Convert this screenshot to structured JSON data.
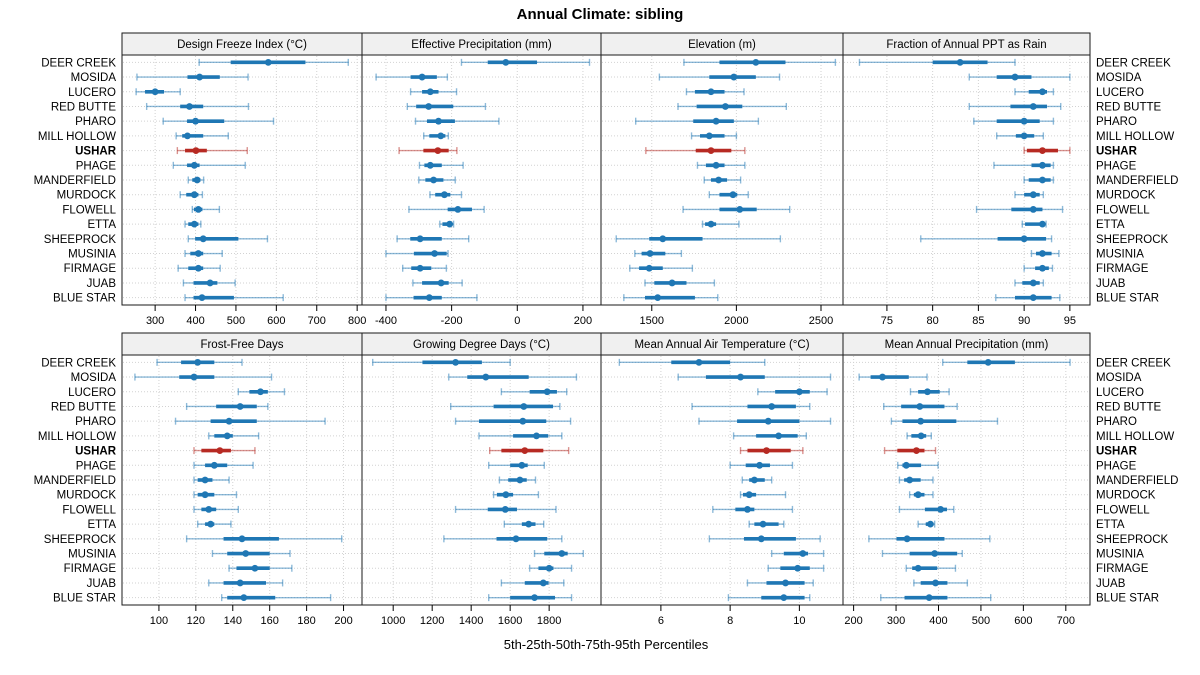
{
  "title": "Annual Climate: sibling",
  "caption": "5th-25th-50th-75th-95th Percentiles",
  "highlight_site": "USHAR",
  "colors": {
    "series": "#1f77b4",
    "highlight": "#b72a23",
    "strip_bg": "#f0f0f0",
    "grid": "#d2d2d2",
    "panel_border": "#1a1a1a",
    "text": "#000000"
  },
  "sites": [
    "DEER CREEK",
    "MOSIDA",
    "LUCERO",
    "RED BUTTE",
    "PHARO",
    "MILL HOLLOW",
    "USHAR",
    "PHAGE",
    "MANDERFIELD",
    "MURDOCK",
    "FLOWELL",
    "ETTA",
    "SHEEPROCK",
    "MUSINIA",
    "FIRMAGE",
    "JUAB",
    "BLUE STAR"
  ],
  "chart_data": {
    "type": "dotplot-percentiles",
    "percentiles": [
      5,
      25,
      50,
      75,
      95
    ],
    "legend_position": "none",
    "grid": "dotted",
    "panels": [
      {
        "key": "design-freeze-index",
        "title": "Design Freeze Index (°C)",
        "xlim": [
          218,
          812
        ],
        "ticks": [
          300,
          400,
          500,
          600,
          700,
          800
        ],
        "values": [
          [
            409,
            487,
            580,
            672,
            778
          ],
          [
            255,
            380,
            410,
            460,
            530
          ],
          [
            253,
            275,
            300,
            322,
            362
          ],
          [
            279,
            362,
            385,
            419,
            531
          ],
          [
            320,
            379,
            400,
            471,
            593
          ],
          [
            352,
            367,
            380,
            419,
            481
          ],
          [
            355,
            374,
            401,
            428,
            528
          ],
          [
            345,
            379,
            397,
            410,
            523
          ],
          [
            382,
            392,
            404,
            412,
            420
          ],
          [
            362,
            377,
            397,
            407,
            417
          ],
          [
            392,
            396,
            407,
            417,
            459
          ],
          [
            374,
            382,
            397,
            407,
            413
          ],
          [
            382,
            399,
            419,
            506,
            578
          ],
          [
            374,
            387,
            407,
            419,
            466
          ],
          [
            357,
            382,
            407,
            419,
            461
          ],
          [
            370,
            395,
            436,
            454,
            498
          ],
          [
            374,
            395,
            416,
            495,
            617
          ]
        ]
      },
      {
        "key": "effective-precipitation",
        "title": "Effective Precipitation (mm)",
        "xlim": [
          -473,
          255
        ],
        "ticks": [
          -400,
          -200,
          0,
          200
        ],
        "values": [
          [
            -170,
            -90,
            -35,
            60,
            220
          ],
          [
            -430,
            -325,
            -290,
            -245,
            -213
          ],
          [
            -325,
            -290,
            -265,
            -240,
            -185
          ],
          [
            -335,
            -308,
            -270,
            -195,
            -97
          ],
          [
            -310,
            -275,
            -240,
            -190,
            -56
          ],
          [
            -285,
            -268,
            -233,
            -219,
            -210
          ],
          [
            -360,
            -286,
            -242,
            -209,
            -184
          ],
          [
            -298,
            -283,
            -265,
            -230,
            -165
          ],
          [
            -300,
            -280,
            -255,
            -225,
            -189
          ],
          [
            -266,
            -250,
            -222,
            -204,
            -170
          ],
          [
            -330,
            -212,
            -181,
            -138,
            -101
          ],
          [
            -236,
            -228,
            -206,
            -199,
            -194
          ],
          [
            -366,
            -326,
            -296,
            -230,
            -148
          ],
          [
            -400,
            -315,
            -252,
            -215,
            -211
          ],
          [
            -349,
            -323,
            -296,
            -262,
            -216
          ],
          [
            -318,
            -290,
            -232,
            -209,
            -168
          ],
          [
            -400,
            -316,
            -268,
            -230,
            -123
          ]
        ]
      },
      {
        "key": "elevation",
        "title": "Elevation (m)",
        "xlim": [
          1200,
          2630
        ],
        "ticks": [
          1500,
          2000,
          2500
        ],
        "values": [
          [
            1690,
            1900,
            2115,
            2290,
            2585
          ],
          [
            1545,
            1840,
            1985,
            2115,
            2255
          ],
          [
            1705,
            1755,
            1850,
            1930,
            2045
          ],
          [
            1655,
            1765,
            1935,
            2035,
            2295
          ],
          [
            1405,
            1745,
            1880,
            1985,
            2130
          ],
          [
            1735,
            1785,
            1840,
            1930,
            2000
          ],
          [
            1465,
            1760,
            1850,
            1970,
            2050
          ],
          [
            1770,
            1820,
            1880,
            1930,
            2050
          ],
          [
            1810,
            1850,
            1895,
            1945,
            2025
          ],
          [
            1840,
            1900,
            1980,
            2005,
            2070
          ],
          [
            1685,
            1900,
            2020,
            2120,
            2315
          ],
          [
            1800,
            1815,
            1850,
            1880,
            2015
          ],
          [
            1290,
            1485,
            1565,
            1800,
            2260
          ],
          [
            1400,
            1440,
            1490,
            1580,
            1675
          ],
          [
            1370,
            1425,
            1485,
            1565,
            1740
          ],
          [
            1460,
            1515,
            1620,
            1705,
            1870
          ],
          [
            1335,
            1460,
            1535,
            1755,
            1890
          ]
        ]
      },
      {
        "key": "fraction-annual-ppt-as-rain",
        "title": "Fraction of Annual PPT as Rain",
        "xlim": [
          70.2,
          97.2
        ],
        "ticks": [
          75,
          80,
          85,
          90,
          95
        ],
        "values": [
          [
            72,
            80,
            83,
            86,
            89
          ],
          [
            84,
            87,
            89,
            90.8,
            95
          ],
          [
            89,
            90.5,
            92,
            92.5,
            93.2
          ],
          [
            84,
            88.5,
            91,
            92.5,
            94
          ],
          [
            84.5,
            87,
            90,
            91.7,
            93.2
          ],
          [
            87,
            89.1,
            90,
            91.1,
            92.1
          ],
          [
            90,
            90.3,
            92,
            93.7,
            95
          ],
          [
            86.7,
            90.8,
            92,
            92.9,
            93.2
          ],
          [
            90,
            90.5,
            92,
            92.9,
            93.2
          ],
          [
            89,
            90,
            91,
            91.7,
            92.1
          ],
          [
            84.8,
            88.6,
            91,
            92,
            94.2
          ],
          [
            89.8,
            90.1,
            92,
            92.2,
            92.4
          ],
          [
            78.7,
            87.1,
            90,
            92.4,
            93
          ],
          [
            90.8,
            91.3,
            92,
            93,
            93.8
          ],
          [
            90,
            91.2,
            92,
            92.7,
            93.1
          ],
          [
            89,
            89.8,
            91,
            91.7,
            92.1
          ],
          [
            86.9,
            89,
            91,
            93,
            93.9
          ]
        ]
      },
      {
        "key": "frost-free-days",
        "title": "Frost-Free Days",
        "xlim": [
          80,
          210
        ],
        "ticks": [
          100,
          120,
          140,
          160,
          180,
          200
        ],
        "values": [
          [
            99,
            112,
            121,
            130,
            145
          ],
          [
            87,
            111,
            119,
            130,
            161
          ],
          [
            143,
            149,
            155,
            159,
            168
          ],
          [
            115,
            131,
            144,
            153,
            159
          ],
          [
            109,
            128,
            138,
            153,
            190
          ],
          [
            127,
            130,
            137,
            140,
            154
          ],
          [
            119,
            123,
            133,
            139,
            152
          ],
          [
            119,
            125,
            130,
            137,
            151
          ],
          [
            119,
            121,
            125,
            129,
            138
          ],
          [
            119,
            121,
            125,
            130,
            142
          ],
          [
            119,
            123,
            127,
            131,
            143
          ],
          [
            121,
            125,
            128,
            130,
            139
          ],
          [
            115,
            135,
            145,
            165,
            199
          ],
          [
            129,
            137,
            147,
            160,
            171
          ],
          [
            138,
            142,
            152,
            160,
            172
          ],
          [
            127,
            135,
            144,
            158,
            167
          ],
          [
            134,
            137,
            146,
            163,
            193
          ]
        ]
      },
      {
        "key": "growing-degree-days",
        "title": "Growing Degree Days (°C)",
        "xlim": [
          840,
          2066
        ],
        "ticks": [
          1000,
          1200,
          1400,
          1600,
          1800
        ],
        "values": [
          [
            895,
            1150,
            1320,
            1455,
            1600
          ],
          [
            1285,
            1380,
            1475,
            1695,
            1940
          ],
          [
            1555,
            1700,
            1790,
            1840,
            1890
          ],
          [
            1295,
            1515,
            1670,
            1820,
            1855
          ],
          [
            1320,
            1440,
            1665,
            1785,
            1910
          ],
          [
            1440,
            1615,
            1735,
            1795,
            1865
          ],
          [
            1495,
            1555,
            1675,
            1770,
            1900
          ],
          [
            1490,
            1600,
            1660,
            1690,
            1775
          ],
          [
            1545,
            1590,
            1650,
            1685,
            1730
          ],
          [
            1515,
            1532,
            1578,
            1615,
            1745
          ],
          [
            1320,
            1485,
            1575,
            1635,
            1835
          ],
          [
            1570,
            1660,
            1695,
            1730,
            1772
          ],
          [
            1260,
            1530,
            1630,
            1790,
            1865
          ],
          [
            1725,
            1775,
            1865,
            1895,
            1975
          ],
          [
            1700,
            1745,
            1800,
            1822,
            1915
          ],
          [
            1555,
            1675,
            1770,
            1797,
            1875
          ],
          [
            1490,
            1600,
            1725,
            1830,
            1915
          ]
        ]
      },
      {
        "key": "mean-annual-air-temperature",
        "title": "Mean Annual Air Temperature (°C)",
        "xlim": [
          4.27,
          11.26
        ],
        "ticks": [
          6,
          8,
          10
        ],
        "values": [
          [
            4.8,
            6.3,
            7.1,
            8.0,
            9.0
          ],
          [
            6.5,
            7.3,
            8.3,
            9.0,
            10.9
          ],
          [
            8.8,
            9.3,
            10.0,
            10.3,
            10.8
          ],
          [
            6.9,
            8.5,
            9.2,
            9.9,
            10.3
          ],
          [
            7.1,
            8.2,
            9.1,
            10.0,
            10.9
          ],
          [
            8.1,
            8.75,
            9.4,
            9.95,
            10.2
          ],
          [
            8.3,
            8.5,
            9.05,
            9.75,
            10.1
          ],
          [
            8.0,
            8.45,
            8.85,
            9.15,
            9.8
          ],
          [
            8.35,
            8.55,
            8.7,
            9.0,
            9.2
          ],
          [
            8.3,
            8.37,
            8.55,
            8.75,
            9.6
          ],
          [
            7.5,
            8.15,
            8.5,
            8.7,
            9.8
          ],
          [
            8.55,
            8.7,
            8.95,
            9.4,
            9.55
          ],
          [
            7.4,
            8.4,
            8.9,
            9.9,
            10.6
          ],
          [
            9.2,
            9.55,
            10.1,
            10.25,
            10.7
          ],
          [
            9.1,
            9.45,
            9.95,
            10.3,
            10.7
          ],
          [
            8.5,
            9.05,
            9.6,
            10.15,
            10.4
          ],
          [
            7.95,
            8.9,
            9.55,
            10.15,
            10.3
          ]
        ]
      },
      {
        "key": "mean-annual-precipitation",
        "title": "Mean Annual Precipitation (mm)",
        "xlim": [
          175,
          757
        ],
        "ticks": [
          200,
          300,
          400,
          500,
          600,
          700
        ],
        "values": [
          [
            410,
            468,
            517,
            580,
            710
          ],
          [
            213,
            240,
            268,
            330,
            373
          ],
          [
            334,
            352,
            374,
            403,
            425
          ],
          [
            271,
            312,
            356,
            414,
            444
          ],
          [
            289,
            315,
            358,
            442,
            539
          ],
          [
            326,
            336,
            359,
            371,
            383
          ],
          [
            273,
            303,
            348,
            367,
            393
          ],
          [
            304,
            315,
            324,
            359,
            399
          ],
          [
            308,
            319,
            332,
            358,
            387
          ],
          [
            332,
            342,
            352,
            367,
            387
          ],
          [
            308,
            368,
            405,
            420,
            436
          ],
          [
            352,
            370,
            381,
            388,
            391
          ],
          [
            236,
            301,
            326,
            414,
            521
          ],
          [
            268,
            332,
            391,
            444,
            456
          ],
          [
            324,
            338,
            352,
            397,
            440
          ],
          [
            342,
            358,
            393,
            421,
            468
          ],
          [
            264,
            320,
            378,
            421,
            523
          ]
        ]
      }
    ]
  }
}
